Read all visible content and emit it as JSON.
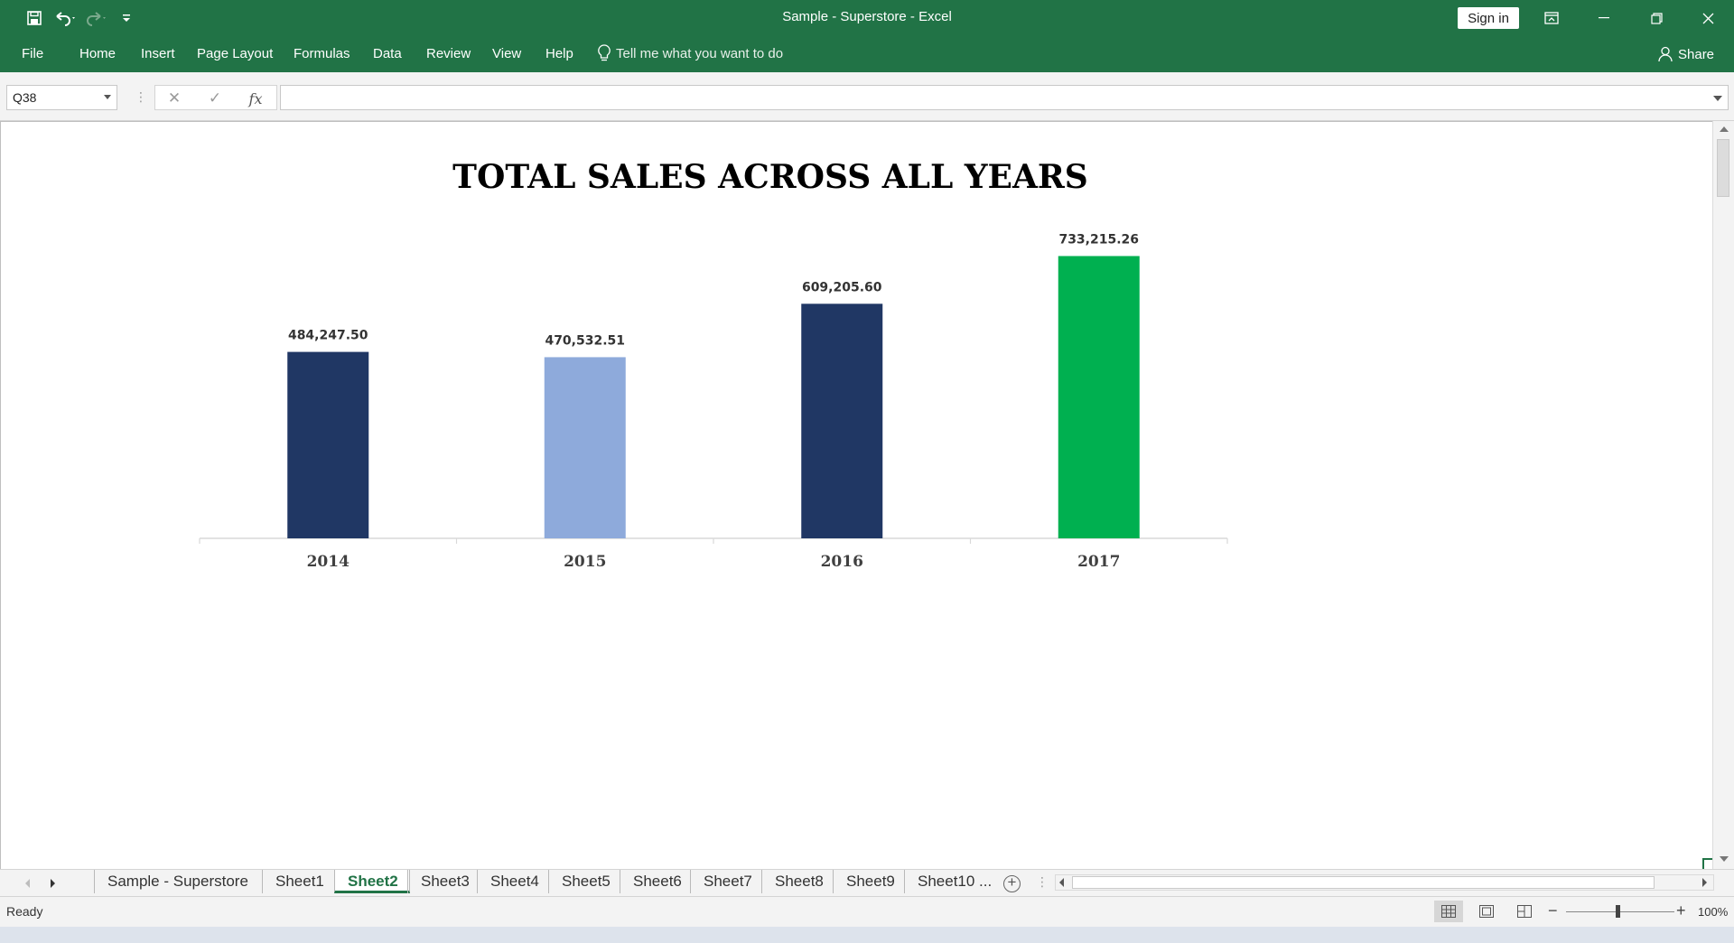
{
  "window": {
    "title": "Sample - Superstore  -  Excel",
    "sign_in_label": "Sign in"
  },
  "ribbon": {
    "tabs": [
      "File",
      "Home",
      "Insert",
      "Page Layout",
      "Formulas",
      "Data",
      "Review",
      "View",
      "Help"
    ],
    "tell_me": "Tell me what you want to do",
    "share_label": "Share"
  },
  "formula_bar": {
    "name_box": "Q38",
    "fx_label": "fx",
    "formula": ""
  },
  "chart_data": {
    "type": "bar",
    "title": "TOTAL SALES ACROSS ALL YEARS",
    "categories": [
      "2014",
      "2015",
      "2016",
      "2017"
    ],
    "values": [
      484247.5,
      470532.51,
      609205.6,
      733215.26
    ],
    "data_labels": [
      "484,247.50",
      "470,532.51",
      "609,205.60",
      "733,215.26"
    ],
    "colors": [
      "#203764",
      "#8eaadb",
      "#203764",
      "#00b050"
    ],
    "grid": false,
    "legend": "none",
    "xlabel": "",
    "ylabel": ""
  },
  "sheet_tabs": {
    "tabs": [
      "Sample - Superstore",
      "Sheet1",
      "Sheet2",
      "Sheet3",
      "Sheet4",
      "Sheet5",
      "Sheet6",
      "Sheet7",
      "Sheet8",
      "Sheet9",
      "Sheet10 ..."
    ],
    "active": "Sheet2"
  },
  "status_bar": {
    "status": "Ready",
    "zoom": "100%"
  },
  "colors": {
    "excel_green": "#217346"
  }
}
